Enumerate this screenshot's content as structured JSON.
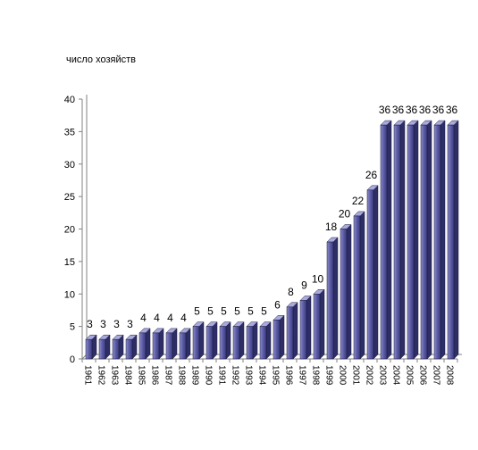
{
  "chart_data": {
    "type": "bar",
    "ylabel": "число хозяйств",
    "xlabel": "",
    "ylim": [
      0,
      40
    ],
    "yticks": [
      0,
      5,
      10,
      15,
      20,
      25,
      30,
      35,
      40
    ],
    "grid": false,
    "legend": "none",
    "bar_color": "#5b5b9f",
    "categories": [
      "1961",
      "1962",
      "1963",
      "1984",
      "1985",
      "1986",
      "1987",
      "1988",
      "1989",
      "1990",
      "1991",
      "1992",
      "1993",
      "1994",
      "1995",
      "1996",
      "1997",
      "1998",
      "1999",
      "2000",
      "2001",
      "2002",
      "2003",
      "2004",
      "2005",
      "2006",
      "2007",
      "2008"
    ],
    "values": [
      3,
      3,
      3,
      3,
      4,
      4,
      4,
      4,
      5,
      5,
      5,
      5,
      5,
      5,
      6,
      8,
      9,
      10,
      18,
      20,
      22,
      26,
      36,
      36,
      36,
      36,
      36,
      36
    ]
  }
}
